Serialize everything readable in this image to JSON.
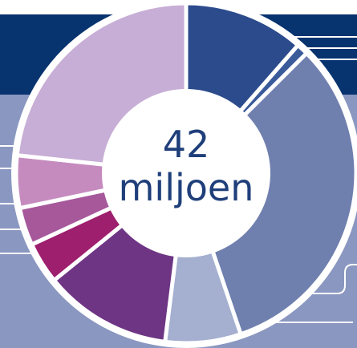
{
  "chart_data": {
    "type": "pie",
    "center_value": "42",
    "center_unit": "miljoen",
    "slices": [
      {
        "value": 12.4,
        "color": "#2b4b8c"
      },
      {
        "value": 1.2,
        "color": "#3a5a9a"
      },
      {
        "value": 35.0,
        "color": "#6f7fae"
      },
      {
        "value": 7.8,
        "color": "#a5afd0"
      },
      {
        "value": 13.2,
        "color": "#6e3584"
      },
      {
        "value": 4.3,
        "color": "#9e1f6e"
      },
      {
        "value": 3.9,
        "color": "#a6589b"
      },
      {
        "value": 5.4,
        "color": "#c58bbf"
      },
      {
        "value": 25.3,
        "color": "#c7aed6"
      }
    ]
  },
  "colors": {
    "band_dark": "#07336f",
    "band_light": "#8a97c0",
    "divider": "#ffffff"
  }
}
